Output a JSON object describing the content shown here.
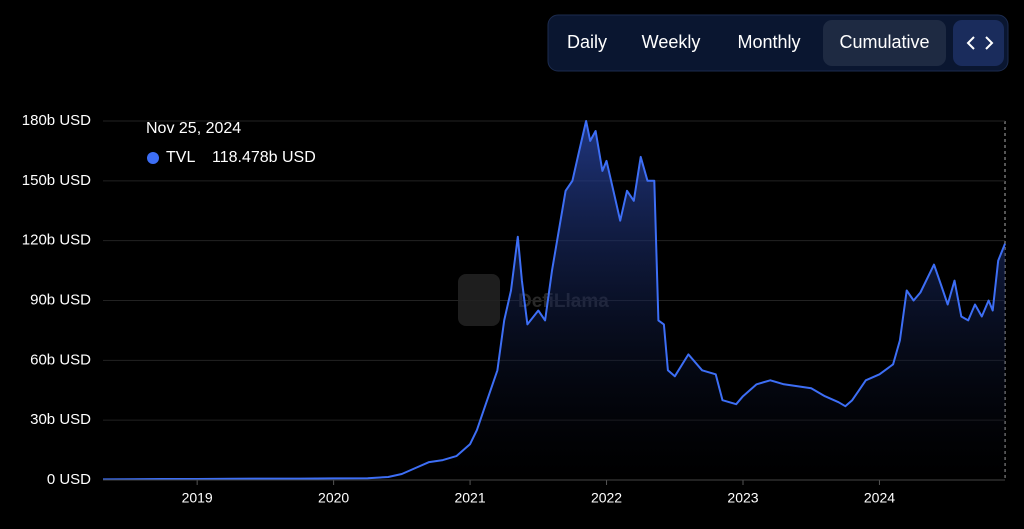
{
  "chart_data": {
    "type": "area",
    "controls": [
      "Daily",
      "Weekly",
      "Monthly",
      "Cumulative"
    ],
    "active_control": 3,
    "watermark": "DefiLlama",
    "tooltip": {
      "date": "Nov 25, 2024",
      "value_label": "118.478b USD"
    },
    "x": [
      2018.31,
      2018.5,
      2018.75,
      2019.0,
      2019.25,
      2019.5,
      2019.75,
      2020.0,
      2020.25,
      2020.4,
      2020.5,
      2020.6,
      2020.7,
      2020.8,
      2020.9,
      2021.0,
      2021.05,
      2021.1,
      2021.2,
      2021.25,
      2021.3,
      2021.35,
      2021.38,
      2021.42,
      2021.5,
      2021.55,
      2021.6,
      2021.65,
      2021.7,
      2021.75,
      2021.8,
      2021.85,
      2021.88,
      2021.92,
      2021.97,
      2022.0,
      2022.05,
      2022.1,
      2022.15,
      2022.2,
      2022.25,
      2022.3,
      2022.35,
      2022.38,
      2022.42,
      2022.45,
      2022.5,
      2022.6,
      2022.7,
      2022.8,
      2022.85,
      2022.95,
      2023.0,
      2023.1,
      2023.2,
      2023.3,
      2023.4,
      2023.5,
      2023.6,
      2023.7,
      2023.75,
      2023.8,
      2023.85,
      2023.9,
      2024.0,
      2024.1,
      2024.15,
      2024.2,
      2024.25,
      2024.3,
      2024.4,
      2024.45,
      2024.5,
      2024.55,
      2024.6,
      2024.65,
      2024.7,
      2024.75,
      2024.8,
      2024.83,
      2024.87,
      2024.92
    ],
    "series": [
      {
        "name": "TVL",
        "color": "#3d6ef5",
        "values": [
          0.3,
          0.4,
          0.5,
          0.5,
          0.6,
          0.7,
          0.7,
          0.8,
          0.9,
          1.5,
          3,
          6,
          9,
          10,
          12,
          18,
          25,
          35,
          55,
          80,
          95,
          122,
          100,
          78,
          85,
          80,
          105,
          125,
          145,
          150,
          165,
          180,
          170,
          175,
          155,
          160,
          145,
          130,
          145,
          140,
          162,
          150,
          150,
          80,
          78,
          55,
          52,
          63,
          55,
          53,
          40,
          38,
          42,
          48,
          50,
          48,
          47,
          46,
          42,
          39,
          37,
          40,
          45,
          50,
          53,
          58,
          70,
          95,
          90,
          94,
          108,
          98,
          88,
          100,
          82,
          80,
          88,
          82,
          90,
          85,
          110,
          118.478
        ]
      }
    ],
    "xlim": [
      2018.31,
      2024.92
    ],
    "xticks": [
      2019,
      2020,
      2021,
      2022,
      2023,
      2024
    ],
    "ylim": [
      0,
      180
    ],
    "yticks": [
      {
        "value": 0,
        "label": "0 USD"
      },
      {
        "value": 30,
        "label": "30b USD"
      },
      {
        "value": 60,
        "label": "60b USD"
      },
      {
        "value": 90,
        "label": "90b USD"
      },
      {
        "value": 120,
        "label": "120b USD"
      },
      {
        "value": 150,
        "label": "150b USD"
      },
      {
        "value": 180,
        "label": "180b USD"
      }
    ],
    "grid": true
  }
}
